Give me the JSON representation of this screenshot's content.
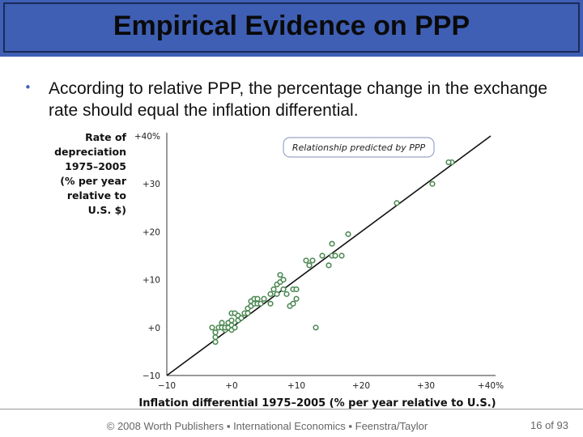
{
  "slide": {
    "title": "Empirical Evidence on PPP",
    "bullet": "According to relative PPP, the percentage change in the exchange rate should equal the inflation differential.",
    "footer": "© 2008 Worth Publishers ▪ International Economics ▪ Feenstra/Taylor",
    "page": "16 of 93"
  },
  "chart_data": {
    "type": "scatter",
    "ylabel_lines": [
      "Rate of",
      "depreciation",
      "1975–2005",
      "(% per year",
      "relative to",
      "U.S. $)"
    ],
    "xlabel": "Inflation differential 1975–2005 (% per year relative to U.S.)",
    "annotation": "Relationship predicted by PPP",
    "xlim": [
      -10,
      40
    ],
    "ylim": [
      -10,
      40
    ],
    "xticks": [
      "−10",
      "+0",
      "+10",
      "+20",
      "+30",
      "+40%"
    ],
    "yticks": [
      "−10",
      "+0",
      "+10",
      "+20",
      "+30",
      "+40%"
    ],
    "line": [
      [
        -10,
        -10
      ],
      [
        40,
        40
      ]
    ],
    "points": [
      [
        -3,
        0
      ],
      [
        -2.5,
        -1
      ],
      [
        -2,
        0
      ],
      [
        -1.5,
        0
      ],
      [
        -1.5,
        1
      ],
      [
        -1,
        -0.5
      ],
      [
        -1,
        0
      ],
      [
        -0.5,
        0
      ],
      [
        -0.5,
        1
      ],
      [
        0,
        -0.5
      ],
      [
        0,
        0.5
      ],
      [
        0,
        1.5
      ],
      [
        0,
        3
      ],
      [
        0.5,
        0
      ],
      [
        0.5,
        3
      ],
      [
        -2.5,
        -3
      ],
      [
        -2.5,
        -2
      ],
      [
        1,
        1.5
      ],
      [
        1,
        2.5
      ],
      [
        1.5,
        2
      ],
      [
        2,
        3
      ],
      [
        2.5,
        3
      ],
      [
        2.5,
        4
      ],
      [
        3,
        4.5
      ],
      [
        3,
        5.5
      ],
      [
        3.5,
        6
      ],
      [
        3.5,
        5
      ],
      [
        4,
        5
      ],
      [
        4,
        6
      ],
      [
        4.5,
        5
      ],
      [
        5,
        6
      ],
      [
        6,
        5
      ],
      [
        6,
        7
      ],
      [
        6.5,
        8
      ],
      [
        7,
        9
      ],
      [
        7,
        7
      ],
      [
        7.5,
        9.5
      ],
      [
        7.5,
        11
      ],
      [
        8,
        8
      ],
      [
        8,
        10
      ],
      [
        8.5,
        7
      ],
      [
        9,
        4.5
      ],
      [
        9.5,
        8
      ],
      [
        10,
        8
      ],
      [
        10,
        6
      ],
      [
        9.5,
        5
      ],
      [
        11.5,
        14
      ],
      [
        12.5,
        14
      ],
      [
        12,
        13
      ],
      [
        13,
        0
      ],
      [
        14,
        15
      ],
      [
        15.5,
        15
      ],
      [
        15,
        13
      ],
      [
        16,
        15
      ],
      [
        15.5,
        17.5
      ],
      [
        17,
        15
      ],
      [
        18,
        19.5
      ],
      [
        25.5,
        26
      ],
      [
        31,
        30
      ],
      [
        34,
        34.5
      ],
      [
        33.5,
        34.5
      ]
    ]
  }
}
